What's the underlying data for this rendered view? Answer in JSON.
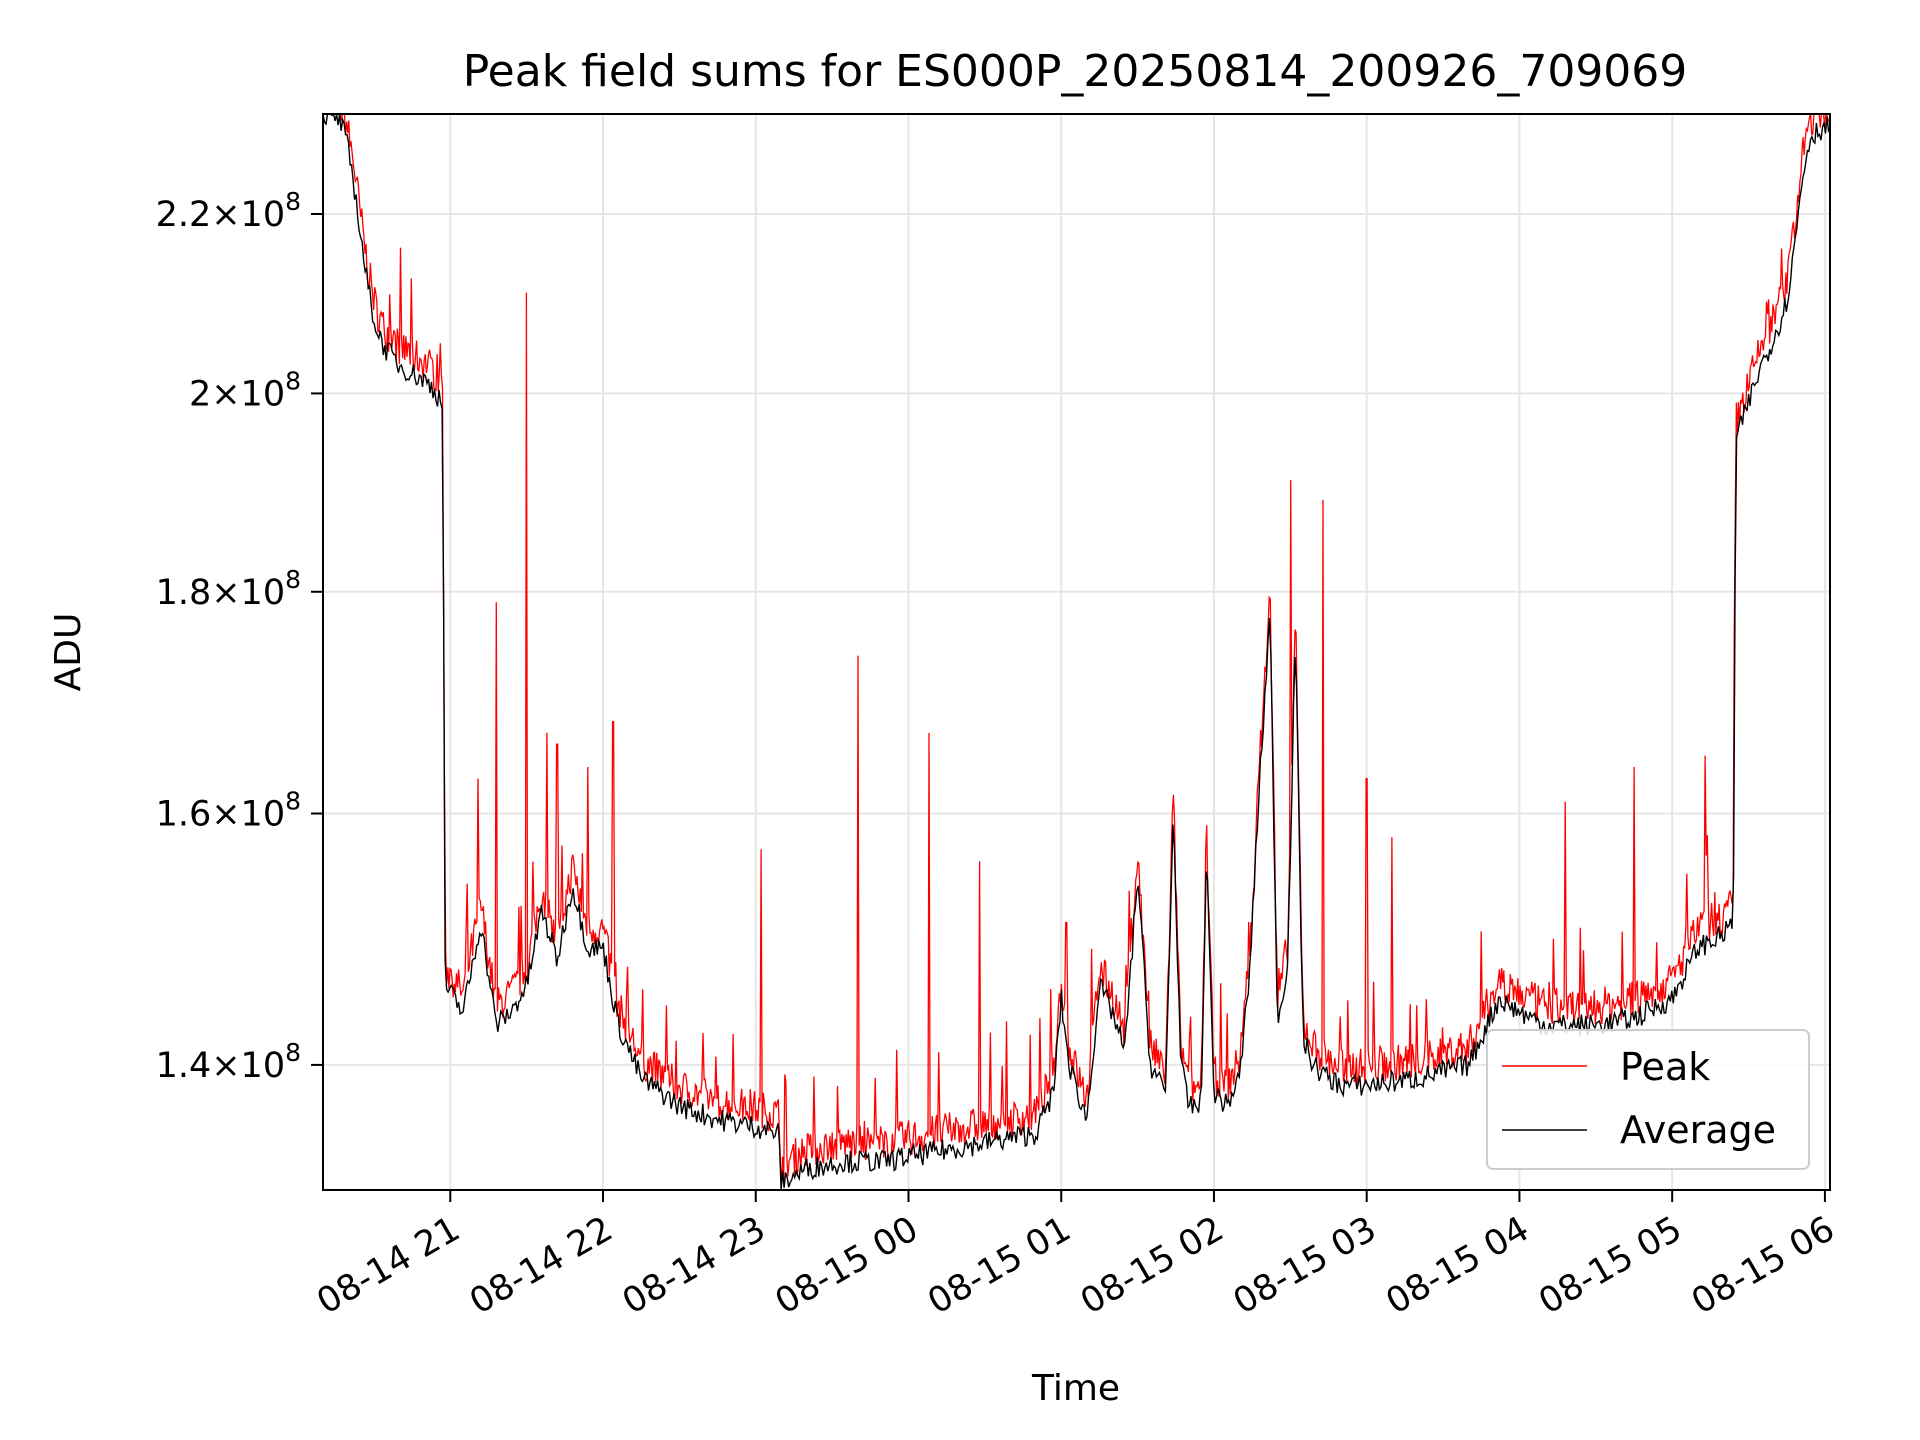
{
  "chart_data": {
    "type": "line",
    "title": "Peak field sums for ES000P_20250814_200926_709069",
    "xlabel": "Time",
    "ylabel": "ADU",
    "y_scale": "log",
    "grid": true,
    "legend_position": "lower-right",
    "xlim": [
      "2025-08-14 20:10",
      "2025-08-15 06:02"
    ],
    "ylim": [
      131000000,
      232000000
    ],
    "x_ticks": [
      {
        "t": "2025-08-14 21:00",
        "label": "08-14 21"
      },
      {
        "t": "2025-08-14 22:00",
        "label": "08-14 22"
      },
      {
        "t": "2025-08-14 23:00",
        "label": "08-14 23"
      },
      {
        "t": "2025-08-15 00:00",
        "label": "08-15 00"
      },
      {
        "t": "2025-08-15 01:00",
        "label": "08-15 01"
      },
      {
        "t": "2025-08-15 02:00",
        "label": "08-15 02"
      },
      {
        "t": "2025-08-15 03:00",
        "label": "08-15 03"
      },
      {
        "t": "2025-08-15 04:00",
        "label": "08-15 04"
      },
      {
        "t": "2025-08-15 05:00",
        "label": "08-15 05"
      },
      {
        "t": "2025-08-15 06:00",
        "label": "08-15 06"
      }
    ],
    "y_ticks": [
      {
        "value": 140000000,
        "mant": "1.4",
        "exp": "8"
      },
      {
        "value": 160000000,
        "mant": "1.6",
        "exp": "8"
      },
      {
        "value": 180000000,
        "mant": "1.8",
        "exp": "8"
      },
      {
        "value": 200000000,
        "mant": "2",
        "exp": "8"
      },
      {
        "value": 220000000,
        "mant": "2.2",
        "exp": "8"
      }
    ],
    "series": [
      {
        "name": "Average",
        "color": "#000000",
        "x": [
          "2025-08-14 20:10",
          "2025-08-14 20:16",
          "2025-08-14 20:19",
          "2025-08-14 20:22",
          "2025-08-14 20:25",
          "2025-08-14 20:28",
          "2025-08-14 20:31",
          "2025-08-14 20:34",
          "2025-08-14 20:40",
          "2025-08-14 20:46",
          "2025-08-14 20:52",
          "2025-08-14 20:57",
          "2025-08-14 20:58",
          "2025-08-14 21:05",
          "2025-08-14 21:12",
          "2025-08-14 21:18",
          "2025-08-14 21:24",
          "2025-08-14 21:30",
          "2025-08-14 21:36",
          "2025-08-14 21:42",
          "2025-08-14 21:48",
          "2025-08-14 21:54",
          "2025-08-14 22:00",
          "2025-08-14 22:06",
          "2025-08-14 22:15",
          "2025-08-14 22:30",
          "2025-08-14 22:45",
          "2025-08-14 23:00",
          "2025-08-14 23:09",
          "2025-08-14 23:10",
          "2025-08-14 23:20",
          "2025-08-14 23:35",
          "2025-08-14 23:50",
          "2025-08-15 00:05",
          "2025-08-15 00:20",
          "2025-08-15 00:35",
          "2025-08-15 00:50",
          "2025-08-15 00:57",
          "2025-08-15 01:00",
          "2025-08-15 01:03",
          "2025-08-15 01:10",
          "2025-08-15 01:15",
          "2025-08-15 01:20",
          "2025-08-15 01:25",
          "2025-08-15 01:30",
          "2025-08-15 01:35",
          "2025-08-15 01:41",
          "2025-08-15 01:44",
          "2025-08-15 01:47",
          "2025-08-15 01:50",
          "2025-08-15 01:55",
          "2025-08-15 01:57",
          "2025-08-15 02:00",
          "2025-08-15 02:05",
          "2025-08-15 02:10",
          "2025-08-15 02:14",
          "2025-08-15 02:18",
          "2025-08-15 02:22",
          "2025-08-15 02:25",
          "2025-08-15 02:29",
          "2025-08-15 02:32",
          "2025-08-15 02:35",
          "2025-08-15 02:39",
          "2025-08-15 02:42",
          "2025-08-15 02:45",
          "2025-08-15 02:50",
          "2025-08-15 03:00",
          "2025-08-15 03:20",
          "2025-08-15 03:40",
          "2025-08-15 03:52",
          "2025-08-15 04:00",
          "2025-08-15 04:10",
          "2025-08-15 04:30",
          "2025-08-15 04:45",
          "2025-08-15 05:00",
          "2025-08-15 05:10",
          "2025-08-15 05:20",
          "2025-08-15 05:24",
          "2025-08-15 05:25",
          "2025-08-15 05:30",
          "2025-08-15 05:35",
          "2025-08-15 05:40",
          "2025-08-15 05:45",
          "2025-08-15 05:48",
          "2025-08-15 05:51",
          "2025-08-15 05:54",
          "2025-08-15 05:57",
          "2025-08-15 06:02"
        ],
        "values": [
          232000000,
          231500000,
          229000000,
          224000000,
          217000000,
          211000000,
          207000000,
          205000000,
          203000000,
          202000000,
          201000000,
          199000000,
          146000000,
          144000000,
          151000000,
          143000000,
          144000000,
          146000000,
          152000000,
          148000000,
          154000000,
          149000000,
          149000000,
          143000000,
          139000000,
          137000000,
          136000000,
          135500000,
          135000000,
          131500000,
          132500000,
          133000000,
          133000000,
          133500000,
          134000000,
          134500000,
          135000000,
          138000000,
          145000000,
          140000000,
          136000000,
          146000000,
          144000000,
          141000000,
          155000000,
          140000000,
          138000000,
          160000000,
          140000000,
          137000000,
          137000000,
          157000000,
          138000000,
          137000000,
          139000000,
          147000000,
          163000000,
          178000000,
          143000000,
          148000000,
          176000000,
          142000000,
          140000000,
          139500000,
          139000000,
          138500000,
          138500000,
          139000000,
          140000000,
          145000000,
          144000000,
          143000000,
          143000000,
          143500000,
          145000000,
          149000000,
          150000000,
          151000000,
          195000000,
          199000000,
          203000000,
          206000000,
          210000000,
          216000000,
          224000000,
          229000000,
          230000000,
          230500000
        ]
      },
      {
        "name": "Peak",
        "color": "#ff0000",
        "spikes": [
          {
            "t": "2025-08-14 21:11",
            "value": 163000000
          },
          {
            "t": "2025-08-14 21:18",
            "value": 179000000
          },
          {
            "t": "2025-08-14 21:30",
            "value": 211000000
          },
          {
            "t": "2025-08-14 21:38",
            "value": 167000000
          },
          {
            "t": "2025-08-14 21:42",
            "value": 166000000
          },
          {
            "t": "2025-08-14 21:54",
            "value": 164000000
          },
          {
            "t": "2025-08-14 22:04",
            "value": 168000000
          },
          {
            "t": "2025-08-14 23:02",
            "value": 157000000
          },
          {
            "t": "2025-08-14 23:40",
            "value": 174000000
          },
          {
            "t": "2025-08-15 00:08",
            "value": 167000000
          },
          {
            "t": "2025-08-15 00:28",
            "value": 156000000
          },
          {
            "t": "2025-08-15 01:02",
            "value": 151000000
          },
          {
            "t": "2025-08-15 01:57",
            "value": 159000000
          },
          {
            "t": "2025-08-15 02:30",
            "value": 191000000
          },
          {
            "t": "2025-08-15 02:43",
            "value": 189000000
          },
          {
            "t": "2025-08-15 03:00",
            "value": 163000000
          },
          {
            "t": "2025-08-15 03:10",
            "value": 158000000
          },
          {
            "t": "2025-08-15 04:18",
            "value": 161000000
          },
          {
            "t": "2025-08-15 04:45",
            "value": 164000000
          },
          {
            "t": "2025-08-15 05:13",
            "value": 165000000
          },
          {
            "t": "2025-08-15 05:37",
            "value": 210000000
          },
          {
            "t": "2025-08-15 05:43",
            "value": 216000000
          }
        ]
      }
    ]
  }
}
